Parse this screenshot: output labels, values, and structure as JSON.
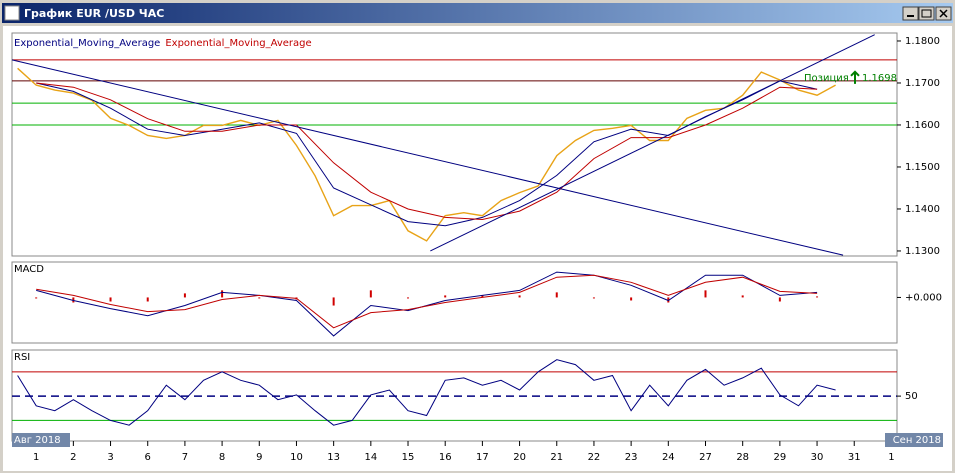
{
  "window": {
    "title": "График EUR /USD ЧАС"
  },
  "x_axis": {
    "xlim": [
      -0.65,
      23.15
    ],
    "xticks": [
      {
        "value": 0,
        "label": "1"
      },
      {
        "value": 1,
        "label": "2"
      },
      {
        "value": 2,
        "label": "3"
      },
      {
        "value": 3,
        "label": "6"
      },
      {
        "value": 4,
        "label": "7"
      },
      {
        "value": 5,
        "label": "8"
      },
      {
        "value": 6,
        "label": "9"
      },
      {
        "value": 7,
        "label": "10"
      },
      {
        "value": 8,
        "label": "13"
      },
      {
        "value": 9,
        "label": "14"
      },
      {
        "value": 10,
        "label": "15"
      },
      {
        "value": 11,
        "label": "16"
      },
      {
        "value": 12,
        "label": "17"
      },
      {
        "value": 13,
        "label": "20"
      },
      {
        "value": 14,
        "label": "21"
      },
      {
        "value": 15,
        "label": "22"
      },
      {
        "value": 16,
        "label": "23"
      },
      {
        "value": 17,
        "label": "24"
      },
      {
        "value": 18,
        "label": "27"
      },
      {
        "value": 19,
        "label": "28"
      },
      {
        "value": 20,
        "label": "29"
      },
      {
        "value": 21,
        "label": "30"
      },
      {
        "value": 22,
        "label": "31"
      },
      {
        "value": 23,
        "label": "1"
      }
    ],
    "months": [
      "Авг 2018",
      "Сен 2018"
    ]
  },
  "chart_data": [
    {
      "type": "line",
      "ylim": [
        1.1288,
        1.1819
      ],
      "yticks": [
        {
          "value": 1.18,
          "label": "1.1800"
        },
        {
          "value": 1.17,
          "label": "1.1700"
        },
        {
          "value": 1.16,
          "label": "1.1600"
        },
        {
          "value": 1.15,
          "label": "1.1500"
        },
        {
          "value": 1.14,
          "label": "1.1400"
        },
        {
          "value": 1.13,
          "label": "1.1300"
        }
      ],
      "series": [
        {
          "color": "#e8a317",
          "x": [
            -0.5,
            0,
            0.5,
            1,
            1.5,
            2,
            2.5,
            3,
            3.5,
            4,
            4.5,
            5,
            5.5,
            6,
            6.5,
            7,
            7.5,
            8,
            8.5,
            9,
            9.5,
            10,
            10.5,
            11,
            11.5,
            12,
            12.5,
            13,
            13.5,
            14,
            14.5,
            15,
            15.5,
            16,
            16.5,
            17,
            17.5,
            18,
            18.5,
            19,
            19.5,
            20,
            20.5,
            21,
            21.5
          ],
          "values": [
            1.1735,
            1.1695,
            1.1683,
            1.1676,
            1.1659,
            1.1616,
            1.1599,
            1.1575,
            1.1568,
            1.1575,
            1.1599,
            1.1599,
            1.1611,
            1.1599,
            1.1611,
            1.1551,
            1.1479,
            1.1384,
            1.1408,
            1.1408,
            1.142,
            1.1348,
            1.1324,
            1.1384,
            1.1391,
            1.1384,
            1.142,
            1.1439,
            1.1455,
            1.1527,
            1.1563,
            1.1587,
            1.1592,
            1.1599,
            1.1563,
            1.1563,
            1.1616,
            1.1635,
            1.164,
            1.1671,
            1.1726,
            1.1707,
            1.1683,
            1.1671,
            1.1695
          ]
        },
        {
          "name": "Exponential_Moving_Average",
          "color": "#000080",
          "x": [
            0,
            1,
            2,
            3,
            4,
            5,
            6,
            7,
            8,
            9,
            10,
            11,
            12,
            13,
            14,
            15,
            16,
            17,
            18,
            19,
            20,
            21
          ],
          "values": [
            1.17,
            1.168,
            1.164,
            1.159,
            1.1575,
            1.159,
            1.1605,
            1.158,
            1.145,
            1.141,
            1.137,
            1.136,
            1.138,
            1.142,
            1.148,
            1.156,
            1.159,
            1.1575,
            1.162,
            1.166,
            1.1705,
            1.1685
          ]
        },
        {
          "name": "Exponential_Moving_Average",
          "color": "#c00000",
          "x": [
            0,
            1,
            2,
            3,
            4,
            5,
            6,
            7,
            8,
            9,
            10,
            11,
            12,
            13,
            14,
            15,
            16,
            17,
            18,
            19,
            20,
            21
          ],
          "values": [
            1.17,
            1.169,
            1.166,
            1.1615,
            1.1585,
            1.1585,
            1.16,
            1.16,
            1.151,
            1.144,
            1.14,
            1.138,
            1.1375,
            1.1395,
            1.144,
            1.152,
            1.157,
            1.157,
            1.16,
            1.164,
            1.169,
            1.1685
          ]
        }
      ],
      "levels": [
        {
          "value": 1.1755,
          "color": "#c00000"
        },
        {
          "value": 1.1705,
          "color": "#600000"
        },
        {
          "value": 1.1652,
          "color": "#00b000"
        },
        {
          "value": 1.16,
          "color": "#00b000"
        }
      ],
      "trendlines": [
        {
          "color": "#000080",
          "x": [
            -0.65,
            21.7
          ],
          "y": [
            1.1755,
            1.129
          ]
        },
        {
          "color": "#000080",
          "x": [
            10.6,
            22.55
          ],
          "y": [
            1.13,
            1.1815
          ]
        }
      ],
      "position": {
        "label": "Позиция",
        "value": 1.1698,
        "value_label": "1.1698",
        "color": "#008000"
      }
    },
    {
      "type": "macd",
      "title": "MACD",
      "ylim": [
        -0.0045,
        0.0035
      ],
      "yticks": [
        {
          "value": 0,
          "label": "+0.000"
        }
      ],
      "x": [
        0,
        1,
        2,
        3,
        4,
        5,
        6,
        7,
        8,
        9,
        10,
        11,
        12,
        13,
        14,
        15,
        16,
        17,
        18,
        19,
        20,
        21
      ],
      "series": [
        {
          "color": "#000080",
          "values": [
            0.0007,
            -0.0003,
            -0.0011,
            -0.0018,
            -0.0008,
            0.0005,
            0.0002,
            -0.0003,
            -0.0038,
            -0.0008,
            -0.0013,
            -0.0003,
            0.0002,
            0.0007,
            0.0025,
            0.0022,
            0.0012,
            -0.0003,
            0.0022,
            0.0022,
            0.0002,
            0.0005
          ]
        },
        {
          "color": "#c00000",
          "values": [
            0.0008,
            0.0002,
            -0.0007,
            -0.0014,
            -0.0012,
            -0.0002,
            0.0002,
            -0.0001,
            -0.003,
            -0.0015,
            -0.0012,
            -0.0005,
            0,
            0.0005,
            0.002,
            0.0022,
            0.0015,
            0.0002,
            0.0015,
            0.002,
            0.0006,
            0.0004
          ]
        }
      ],
      "histogram": {
        "color": "#d00000",
        "values": [
          -0.0001,
          -0.0005,
          -0.0004,
          -0.0004,
          0.0004,
          0.0007,
          0,
          -0.0002,
          -0.0008,
          0.0007,
          -0.0001,
          0.0002,
          0.0002,
          0.0002,
          0.0005,
          0,
          -0.0003,
          -0.0005,
          0.0007,
          0.0002,
          -0.0004,
          0.0001
        ]
      }
    },
    {
      "type": "rsi",
      "title": "RSI",
      "ylim": [
        13,
        88
      ],
      "yticks": [
        50
      ],
      "levels": [
        {
          "value": 70,
          "color": "#c00000"
        },
        {
          "value": 30,
          "color": "#00b000"
        }
      ],
      "series": [
        {
          "color": "#000080",
          "x": [
            -0.5,
            0,
            0.5,
            1,
            1.5,
            2,
            2.5,
            3,
            3.5,
            4,
            4.5,
            5,
            5.5,
            6,
            6.5,
            7,
            7.5,
            8,
            8.5,
            9,
            9.5,
            10,
            10.5,
            11,
            11.5,
            12,
            12.5,
            13,
            13.5,
            14,
            14.5,
            15,
            15.5,
            16,
            16.5,
            17,
            17.5,
            18,
            18.5,
            19,
            19.5,
            20,
            20.5,
            21,
            21.5
          ],
          "values": [
            67,
            42,
            38,
            47,
            38,
            30,
            26,
            38,
            59,
            47,
            63,
            70,
            63,
            59,
            47,
            51,
            38,
            26,
            30,
            51,
            55,
            38,
            34,
            63,
            65,
            59,
            63,
            55,
            70,
            80,
            76,
            63,
            67,
            38,
            59,
            42,
            63,
            72,
            59,
            65,
            73,
            51,
            42,
            59,
            55
          ]
        }
      ]
    }
  ]
}
